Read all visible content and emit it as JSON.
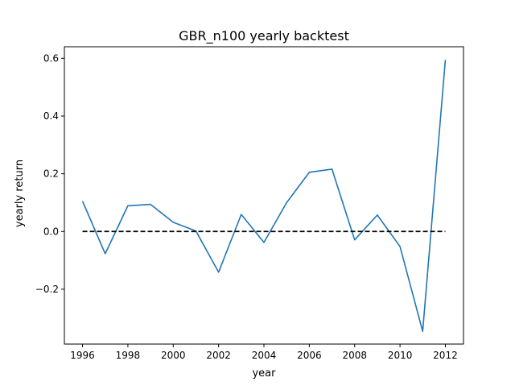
{
  "chart_data": {
    "type": "line",
    "title": "GBR_n100 yearly backtest",
    "xlabel": "year",
    "ylabel": "yearly return",
    "xlim": [
      1995.2,
      2012.8
    ],
    "ylim": [
      -0.39,
      0.64
    ],
    "xticks": [
      1996,
      1998,
      2000,
      2002,
      2004,
      2006,
      2008,
      2010,
      2012
    ],
    "yticks": [
      -0.2,
      0.0,
      0.2,
      0.4,
      0.6
    ],
    "xtick_labels": [
      "1996",
      "1998",
      "2000",
      "2002",
      "2004",
      "2006",
      "2008",
      "2010",
      "2012"
    ],
    "ytick_labels": [
      "−0.2",
      "0.0",
      "0.2",
      "0.4",
      "0.6"
    ],
    "grid": false,
    "series": [
      {
        "color": "#1f77b4",
        "x": [
          1996,
          1997,
          1998,
          1999,
          2000,
          2001,
          2002,
          2003,
          2004,
          2005,
          2006,
          2007,
          2008,
          2009,
          2010,
          2011,
          2012
        ],
        "values": [
          0.105,
          -0.077,
          0.089,
          0.094,
          0.032,
          0.002,
          -0.141,
          0.059,
          -0.038,
          0.1,
          0.205,
          0.216,
          -0.029,
          0.057,
          -0.052,
          -0.346,
          0.594
        ]
      },
      {
        "color": "#000000",
        "dashed": true,
        "x": [
          1996,
          2012
        ],
        "values": [
          0,
          0
        ]
      }
    ]
  }
}
